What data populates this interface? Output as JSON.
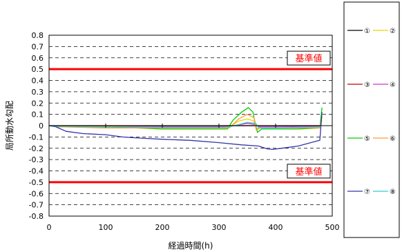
{
  "chart_data": {
    "type": "line",
    "xlabel": "経過時間(h)",
    "ylabel": "局所動水勾配",
    "xlim": [
      0,
      500
    ],
    "ylim": [
      -0.8,
      0.8
    ],
    "xticks": [
      0,
      100,
      200,
      300,
      400,
      500
    ],
    "yticks": [
      0.8,
      0.7,
      0.6,
      0.5,
      0.4,
      0.3,
      0.2,
      0.1,
      0,
      -0.1,
      -0.2,
      -0.3,
      -0.4,
      -0.5,
      -0.6,
      -0.7,
      -0.8
    ],
    "ytick_labels": [
      "0.8",
      "0.7",
      "0.6",
      "0.5",
      "0.4",
      "0.3",
      "0.2",
      "0.1",
      "0",
      "-0.1",
      "-0.2",
      "-0.3",
      "-0.4",
      "-0.5",
      "-0.6",
      "-0.7",
      "-0.8"
    ],
    "grid": "horizontal-dashed",
    "legend_position": "right",
    "reference_lines": [
      {
        "y": 0.5,
        "label": "基準値",
        "color": "#ff0000"
      },
      {
        "y": -0.5,
        "label": "基準値",
        "color": "#ff0000"
      }
    ],
    "series": [
      {
        "name": "①",
        "color": "#000000",
        "x": [
          0,
          20,
          100,
          200,
          300,
          320,
          350,
          365,
          370,
          400,
          480
        ],
        "y": [
          0,
          0,
          0,
          0,
          0,
          0,
          0,
          0,
          0,
          0,
          0
        ]
      },
      {
        "name": "②",
        "color": "#e6d800",
        "x": [
          0,
          15,
          100,
          200,
          300,
          318,
          335,
          350,
          362,
          366,
          372,
          400,
          440,
          478,
          482
        ],
        "y": [
          0,
          -0.01,
          -0.01,
          -0.02,
          -0.02,
          -0.01,
          0.04,
          0.06,
          0.04,
          -0.03,
          -0.02,
          -0.02,
          -0.02,
          -0.02,
          0.05
        ]
      },
      {
        "name": "③",
        "color": "#c00000",
        "x": [
          0,
          20,
          480
        ],
        "y": [
          0,
          0,
          0
        ]
      },
      {
        "name": "④",
        "color": "#cc33cc",
        "x": [
          0,
          20,
          100,
          200,
          300,
          320,
          350,
          365,
          370,
          400,
          480
        ],
        "y": [
          0,
          -0.005,
          -0.01,
          -0.01,
          -0.01,
          -0.005,
          0.02,
          0.01,
          -0.01,
          -0.01,
          -0.005
        ]
      },
      {
        "name": "⑤",
        "color": "#00cc00",
        "x": [
          0,
          15,
          100,
          200,
          300,
          315,
          325,
          340,
          352,
          360,
          364,
          368,
          375,
          400,
          440,
          478,
          482
        ],
        "y": [
          0,
          -0.01,
          -0.01,
          -0.03,
          -0.03,
          -0.03,
          0.05,
          0.12,
          0.16,
          0.12,
          0.02,
          -0.06,
          -0.03,
          -0.03,
          -0.03,
          -0.02,
          0.16
        ]
      },
      {
        "name": "⑥",
        "color": "#ff9933",
        "x": [
          0,
          15,
          100,
          200,
          300,
          318,
          335,
          350,
          362,
          366,
          372,
          400,
          440,
          478,
          482
        ],
        "y": [
          0,
          -0.01,
          -0.02,
          -0.02,
          -0.02,
          -0.02,
          0.06,
          0.1,
          0.07,
          -0.04,
          -0.02,
          -0.02,
          -0.02,
          -0.02,
          0.08
        ]
      },
      {
        "name": "⑦",
        "color": "#3333aa",
        "x": [
          0,
          12,
          30,
          60,
          100,
          130,
          160,
          200,
          250,
          300,
          340,
          370,
          385,
          395,
          410,
          440,
          470,
          478,
          482
        ],
        "y": [
          0,
          -0.01,
          -0.05,
          -0.07,
          -0.08,
          -0.1,
          -0.11,
          -0.12,
          -0.13,
          -0.15,
          -0.17,
          -0.18,
          -0.205,
          -0.21,
          -0.2,
          -0.18,
          -0.14,
          -0.13,
          0.12
        ]
      },
      {
        "name": "⑧",
        "color": "#33cccc",
        "x": [
          0,
          15,
          100,
          200,
          300,
          320,
          350,
          365,
          370,
          400,
          480
        ],
        "y": [
          0,
          -0.005,
          -0.01,
          -0.015,
          -0.015,
          -0.01,
          0.03,
          0.02,
          -0.02,
          -0.02,
          -0.01
        ]
      }
    ]
  }
}
